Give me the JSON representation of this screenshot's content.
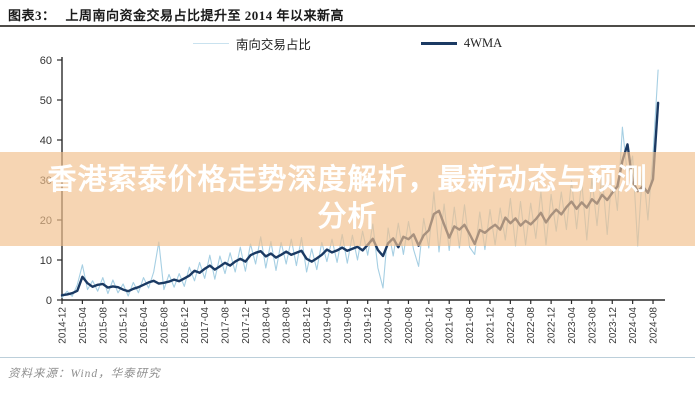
{
  "header": {
    "figure_label": "图表3：",
    "title": "上周南向资金交易占比提升至 2014 年以来新高"
  },
  "legend": {
    "items": [
      {
        "label": "南向交易占比",
        "color": "#c9e2ef"
      },
      {
        "label": "4WMA",
        "color": "#1b3a63"
      }
    ]
  },
  "overlay": {
    "line1": "香港索泰价格走势深度解析，最新动态与预测",
    "line2": "分析",
    "bg_color": "#f2c08c",
    "text_color": "#ffffff"
  },
  "footer": {
    "source": "资料来源：Wind，华泰研究"
  },
  "chart_data": {
    "type": "line",
    "title": "上周南向资金交易占比提升至2014年以来新高",
    "xlabel": "",
    "ylabel": "",
    "ylim": [
      0,
      60
    ],
    "y_ticks": [
      0,
      10,
      20,
      30,
      40,
      50,
      60
    ],
    "grid": false,
    "legend_position": "top",
    "x_start": "2014-12",
    "x_months_per_point": 1,
    "x_months_per_tick": 4,
    "x_tick_labels": [
      "2014-12",
      "2015-04",
      "2015-08",
      "2015-12",
      "2016-04",
      "2016-08",
      "2016-12",
      "2017-04",
      "2017-08",
      "2017-12",
      "2018-04",
      "2018-08",
      "2018-12",
      "2019-04",
      "2019-08",
      "2019-12",
      "2020-04",
      "2020-08",
      "2020-12",
      "2021-04",
      "2021-08",
      "2021-12",
      "2022-04",
      "2022-08",
      "2022-12",
      "2023-04",
      "2023-08",
      "2023-12",
      "2024-04",
      "2024-08"
    ],
    "series": [
      {
        "name": "南向交易占比",
        "color": "#a6cfe3",
        "width": 1.1,
        "values": [
          0.6,
          2.2,
          0.9,
          3.8,
          8.8,
          2.6,
          4.8,
          2.2,
          5.6,
          1.6,
          5.0,
          1.8,
          4.0,
          1.0,
          4.4,
          1.8,
          5.6,
          3.0,
          7.0,
          14.5,
          2.6,
          6.4,
          3.2,
          6.6,
          3.4,
          8.2,
          4.8,
          9.4,
          5.4,
          11.2,
          5.2,
          11.0,
          6.6,
          11.8,
          7.0,
          13.2,
          7.2,
          14.0,
          9.0,
          15.8,
          8.0,
          14.6,
          7.4,
          14.4,
          9.0,
          15.2,
          8.6,
          15.6,
          7.0,
          12.8,
          7.6,
          14.4,
          9.6,
          15.2,
          9.4,
          16.4,
          9.2,
          16.2,
          10.0,
          17.2,
          11.2,
          19.0,
          8.0,
          3.0,
          18.0,
          11.0,
          19.2,
          11.4,
          19.6,
          12.6,
          8.4,
          20.4,
          13.0,
          27.0,
          12.0,
          24.0,
          12.4,
          23.2,
          13.0,
          23.8,
          13.2,
          11.4,
          22.0,
          12.6,
          22.6,
          13.8,
          23.0,
          15.0,
          25.4,
          13.5,
          24.6,
          13.8,
          24.2,
          15.4,
          27.0,
          13.8,
          26.4,
          17.2,
          27.0,
          17.6,
          29.8,
          17.8,
          29.6,
          15.0,
          30.4,
          18.6,
          31.6,
          16.4,
          32.2,
          22.4,
          43.2,
          31.0,
          36.0,
          13.5,
          33.6,
          20.0,
          36.4,
          57.5
        ]
      },
      {
        "name": "4WMA",
        "color": "#1b3a63",
        "width": 2.4,
        "values": [
          1.2,
          1.4,
          1.7,
          2.3,
          5.8,
          4.2,
          3.3,
          3.8,
          4.0,
          3.1,
          3.4,
          3.2,
          2.6,
          2.2,
          2.8,
          3.2,
          3.8,
          4.4,
          4.8,
          4.1,
          4.3,
          4.6,
          5.1,
          4.7,
          5.4,
          6.1,
          7.3,
          6.8,
          7.8,
          8.6,
          7.6,
          8.4,
          9.3,
          8.6,
          9.6,
          10.3,
          9.6,
          11.2,
          11.8,
          12.2,
          10.9,
          11.6,
          10.6,
          11.3,
          12.1,
          11.3,
          11.8,
          12.3,
          10.3,
          9.6,
          10.4,
          11.3,
          12.6,
          11.9,
          12.4,
          13.1,
          12.3,
          12.8,
          13.3,
          12.4,
          13.8,
          15.3,
          12.5,
          11.0,
          14.2,
          15.4,
          13.2,
          15.8,
          15.2,
          16.4,
          13.6,
          16.2,
          17.4,
          21.5,
          22.3,
          18.9,
          15.6,
          18.4,
          17.6,
          18.8,
          16.5,
          14.0,
          17.5,
          16.8,
          17.9,
          18.8,
          17.6,
          20.6,
          19.2,
          20.4,
          18.6,
          19.8,
          18.9,
          20.2,
          21.8,
          19.4,
          21.2,
          22.6,
          21.4,
          23.2,
          24.6,
          22.8,
          24.4,
          23.1,
          25.2,
          24.1,
          26.3,
          25.0,
          26.8,
          28.4,
          34.8,
          38.9,
          29.6,
          27.2,
          28.4,
          26.8,
          30.2,
          49.3
        ]
      }
    ]
  }
}
